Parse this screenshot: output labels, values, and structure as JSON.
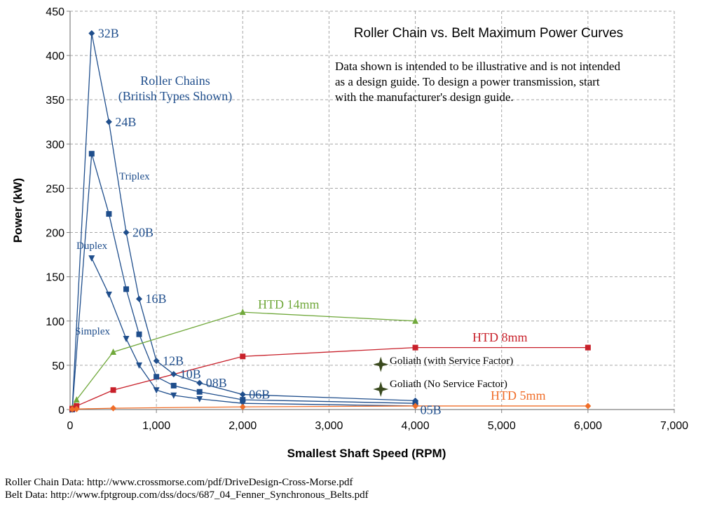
{
  "chart_data": {
    "type": "line",
    "title": "Roller Chain vs. Belt Maximum Power Curves",
    "xlabel": "Smallest Shaft Speed (RPM)",
    "ylabel": "Power (kW)",
    "xlim": [
      0,
      7000
    ],
    "ylim": [
      0,
      450
    ],
    "x_ticks": [
      "0",
      "1,000",
      "2,000",
      "3,000",
      "4,000",
      "5,000",
      "6,000",
      "7,000"
    ],
    "y_ticks": [
      "0",
      "50",
      "100",
      "150",
      "200",
      "250",
      "300",
      "350",
      "400",
      "450"
    ],
    "grid": true,
    "legend": "none",
    "disclaimer": [
      "Data shown is intended to be illustrative and is not intended",
      "as a design guide.  To design a power transmission, start",
      "with the manufacturer's design guide."
    ],
    "group_labels": {
      "roller_chains_line1": "Roller Chains",
      "roller_chains_line2": "(British Types Shown)",
      "triplex": "Triplex",
      "duplex": "Duplex",
      "simplex": "Simplex"
    },
    "series": [
      {
        "group": "chain",
        "marker": "diamond",
        "color": "#1f4e8c",
        "points": [
          {
            "x": 25,
            "y": 0
          },
          {
            "x": 250,
            "y": 425
          },
          {
            "x": 450,
            "y": 325
          },
          {
            "x": 650,
            "y": 200
          },
          {
            "x": 800,
            "y": 125
          },
          {
            "x": 1000,
            "y": 55
          },
          {
            "x": 1200,
            "y": 40
          },
          {
            "x": 1500,
            "y": 30
          },
          {
            "x": 2000,
            "y": 17
          },
          {
            "x": 4000,
            "y": 10
          }
        ],
        "point_labels": [
          "",
          "32B",
          "24B",
          "20B",
          "16B",
          "12B",
          "10B",
          "08B",
          "06B",
          "05B"
        ]
      },
      {
        "name": "Triplex",
        "group": "chain",
        "marker": "square",
        "color": "#1f4e8c",
        "points": [
          {
            "x": 25,
            "y": 0
          },
          {
            "x": 250,
            "y": 289
          },
          {
            "x": 450,
            "y": 221
          },
          {
            "x": 650,
            "y": 136
          },
          {
            "x": 800,
            "y": 85
          },
          {
            "x": 1000,
            "y": 37
          },
          {
            "x": 1200,
            "y": 27
          },
          {
            "x": 1500,
            "y": 20
          },
          {
            "x": 2000,
            "y": 11
          },
          {
            "x": 4000,
            "y": 7
          }
        ]
      },
      {
        "name": "Duplex",
        "group": "chain",
        "marker": "triangle-down",
        "color": "#1f4e8c",
        "points": [
          {
            "x": 250,
            "y": 171
          },
          {
            "x": 450,
            "y": 130
          },
          {
            "x": 650,
            "y": 80
          },
          {
            "x": 800,
            "y": 50
          },
          {
            "x": 1000,
            "y": 22
          },
          {
            "x": 1200,
            "y": 16
          },
          {
            "x": 1500,
            "y": 12
          },
          {
            "x": 2000,
            "y": 7
          },
          {
            "x": 4000,
            "y": 4
          }
        ]
      },
      {
        "name": "HTD 14mm",
        "group": "belt",
        "marker": "triangle-up",
        "color": "#70a83b",
        "points": [
          {
            "x": 25,
            "y": 2
          },
          {
            "x": 75,
            "y": 11
          },
          {
            "x": 500,
            "y": 65
          },
          {
            "x": 2000,
            "y": 110
          },
          {
            "x": 4000,
            "y": 100
          }
        ]
      },
      {
        "name": "HTD 8mm",
        "group": "belt",
        "marker": "square",
        "color": "#c8202a",
        "points": [
          {
            "x": 25,
            "y": 1
          },
          {
            "x": 75,
            "y": 4
          },
          {
            "x": 500,
            "y": 22
          },
          {
            "x": 2000,
            "y": 60
          },
          {
            "x": 4000,
            "y": 70
          },
          {
            "x": 6000,
            "y": 70
          }
        ]
      },
      {
        "name": "HTD 5mm",
        "group": "belt",
        "marker": "diamond",
        "color": "#f06d28",
        "points": [
          {
            "x": 25,
            "y": 0.3
          },
          {
            "x": 75,
            "y": 0.6
          },
          {
            "x": 500,
            "y": 1.5
          },
          {
            "x": 2000,
            "y": 3
          },
          {
            "x": 4000,
            "y": 4
          },
          {
            "x": 6000,
            "y": 4
          }
        ]
      },
      {
        "name": "Goliath (with Service Factor)",
        "group": "goliath",
        "marker": "star",
        "color": "#3a4a1e",
        "points": [
          {
            "x": 3600,
            "y": 51
          }
        ]
      },
      {
        "name": "Goliath (No Service Factor)",
        "group": "goliath",
        "marker": "star",
        "color": "#3a4a1e",
        "points": [
          {
            "x": 3600,
            "y": 23
          }
        ]
      }
    ]
  },
  "footer": {
    "line1": "Roller Chain Data: http://www.crossmorse.com/pdf/DriveDesign-Cross-Morse.pdf",
    "line2": "Belt Data: http://www.fptgroup.com/dss/docs/687_04_Fenner_Synchronous_Belts.pdf"
  }
}
